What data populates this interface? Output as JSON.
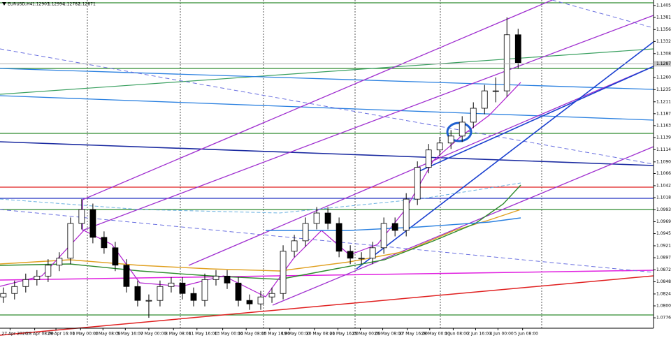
{
  "chart_data": {
    "type": "candlestick",
    "header": {
      "symbol": "EURUSD,H4",
      "open": 1.12903,
      "high": 1.12994,
      "low": 1.12782,
      "close": 1.12871
    },
    "current_price": 1.12875,
    "up_color": "#ffffff",
    "down_color": "#000000",
    "open": [
      1.0818,
      1.0825,
      1.0839,
      1.0853,
      1.086,
      1.0882,
      1.0896,
      1.0966,
      1.0994,
      1.0938,
      1.0917,
      1.0882,
      1.0839,
      1.0811,
      1.0811,
      1.0839,
      1.0846,
      1.0825,
      1.0811,
      1.0853,
      1.086,
      1.0846,
      1.0811,
      1.0804,
      1.0818,
      1.0825,
      1.091,
      1.0931,
      1.0966,
      1.0987,
      1.0966,
      1.091,
      1.0896,
      1.0896,
      1.0917,
      1.0966,
      1.0952,
      1.1015,
      1.1079,
      1.1114,
      1.1128,
      1.1142,
      1.117,
      1.1198,
      1.1233,
      1.1233,
      1.1346
    ],
    "high": [
      1.0837,
      1.0851,
      1.0865,
      1.0872,
      1.0894,
      1.0908,
      1.0978,
      1.1015,
      1.1006,
      1.095,
      1.0929,
      1.0894,
      1.0851,
      1.0823,
      1.0851,
      1.0858,
      1.0858,
      1.0837,
      1.0865,
      1.0872,
      1.0872,
      1.0858,
      1.0823,
      1.083,
      1.0837,
      1.0922,
      1.0943,
      1.0978,
      1.0999,
      1.0999,
      1.0978,
      1.0922,
      1.0908,
      1.0929,
      1.0978,
      1.0978,
      1.1027,
      1.1091,
      1.1126,
      1.114,
      1.1154,
      1.1182,
      1.121,
      1.1245,
      1.126,
      1.1381,
      1.1358
    ],
    "low": [
      1.0806,
      1.0813,
      1.0827,
      1.0841,
      1.0848,
      1.087,
      1.0884,
      1.0954,
      1.0926,
      1.0905,
      1.087,
      1.0827,
      1.0799,
      1.0776,
      1.0799,
      1.0827,
      1.0813,
      1.0799,
      1.0799,
      1.0841,
      1.0834,
      1.0799,
      1.0792,
      1.0792,
      1.0806,
      1.0813,
      1.0898,
      1.0919,
      1.0954,
      1.0954,
      1.0898,
      1.0884,
      1.0884,
      1.0884,
      1.0905,
      1.094,
      1.094,
      1.1003,
      1.1067,
      1.1102,
      1.1116,
      1.113,
      1.1158,
      1.1186,
      1.121,
      1.1221,
      1.1278
    ],
    "close": [
      1.0825,
      1.0839,
      1.0853,
      1.086,
      1.0882,
      1.0896,
      1.0966,
      1.0994,
      1.0938,
      1.0917,
      1.0882,
      1.0839,
      1.0811,
      1.0811,
      1.0839,
      1.0846,
      1.0825,
      1.0811,
      1.0853,
      1.086,
      1.0846,
      1.0811,
      1.0804,
      1.0818,
      1.0825,
      1.091,
      1.0931,
      1.0966,
      1.0987,
      1.0966,
      1.091,
      1.0896,
      1.0896,
      1.0917,
      1.0966,
      1.0952,
      1.1015,
      1.1079,
      1.1114,
      1.1128,
      1.1142,
      1.117,
      1.1198,
      1.1233,
      1.1233,
      1.1346,
      1.129
    ],
    "xlim": [
      -0.3,
      58.1
    ],
    "ylim": [
      1.0755,
      1.1416
    ],
    "xticks": [
      {
        "value": 0.6,
        "label": "27 Apr 2020"
      },
      {
        "value": 2.8,
        "label": "28 Apr 08:00"
      },
      {
        "value": 4.7,
        "label": "29 Apr 16:00"
      },
      {
        "value": 6.9,
        "label": "1 May 00:00"
      },
      {
        "value": 8.9,
        "label": "4 May 08:00"
      },
      {
        "value": 10.9,
        "label": "5 May 16:00"
      },
      {
        "value": 13,
        "label": "7 May 00:00"
      },
      {
        "value": 15.2,
        "label": "8 May 08:00"
      },
      {
        "value": 17.3,
        "label": "11 May 16:00"
      },
      {
        "value": 19.6,
        "label": "13 May 00:00"
      },
      {
        "value": 21.7,
        "label": "14 May 08:00"
      },
      {
        "value": 23.8,
        "label": "15 May 16:00"
      },
      {
        "value": 25.6,
        "label": "19 May 00:00"
      },
      {
        "value": 27.8,
        "label": "20 May 08:00"
      },
      {
        "value": 29.9,
        "label": "21 May 16:00"
      },
      {
        "value": 31.9,
        "label": "25 May 00:00"
      },
      {
        "value": 33.9,
        "label": "26 May 08:00"
      },
      {
        "value": 36.1,
        "label": "27 May 16:00"
      },
      {
        "value": 38.1,
        "label": "29 May 00:00"
      },
      {
        "value": 40.2,
        "label": "1 Jun 08:00"
      },
      {
        "value": 42.2,
        "label": "2 Jun 16:00"
      },
      {
        "value": 44.2,
        "label": "4 Jun 00:00"
      },
      {
        "value": 46.4,
        "label": "5 Jun 08:00"
      }
    ],
    "yticks": [
      {
        "value": 1.1405,
        "label": "1.14050"
      },
      {
        "value": 1.1381,
        "label": "1.13810"
      },
      {
        "value": 1.13565,
        "label": "1.13565"
      },
      {
        "value": 1.13325,
        "label": "1.13325"
      },
      {
        "value": 1.1308,
        "label": "1.13080"
      },
      {
        "value": 1.126,
        "label": "1.12600"
      },
      {
        "value": 1.12355,
        "label": "1.12355"
      },
      {
        "value": 1.1211,
        "label": "1.12110"
      },
      {
        "value": 1.1187,
        "label": "1.11870"
      },
      {
        "value": 1.1163,
        "label": "1.11630"
      },
      {
        "value": 1.1139,
        "label": "1.11390"
      },
      {
        "value": 1.11145,
        "label": "1.11145"
      },
      {
        "value": 1.109,
        "label": "1.10900"
      },
      {
        "value": 1.10665,
        "label": "1.10665"
      },
      {
        "value": 1.1042,
        "label": "1.10420"
      },
      {
        "value": 1.1018,
        "label": "1.10180"
      },
      {
        "value": 1.09935,
        "label": "1.09935"
      },
      {
        "value": 1.09695,
        "label": "1.09695"
      },
      {
        "value": 1.09455,
        "label": "1.09455"
      },
      {
        "value": 1.0921,
        "label": "1.09210"
      },
      {
        "value": 1.0897,
        "label": "1.08970"
      },
      {
        "value": 1.08725,
        "label": "1.08725"
      },
      {
        "value": 1.08485,
        "label": "1.08485"
      },
      {
        "value": 1.0824,
        "label": "1.08240"
      },
      {
        "value": 1.08,
        "label": "1.08000"
      },
      {
        "value": 1.0776,
        "label": "1.07760"
      }
    ]
  }
}
